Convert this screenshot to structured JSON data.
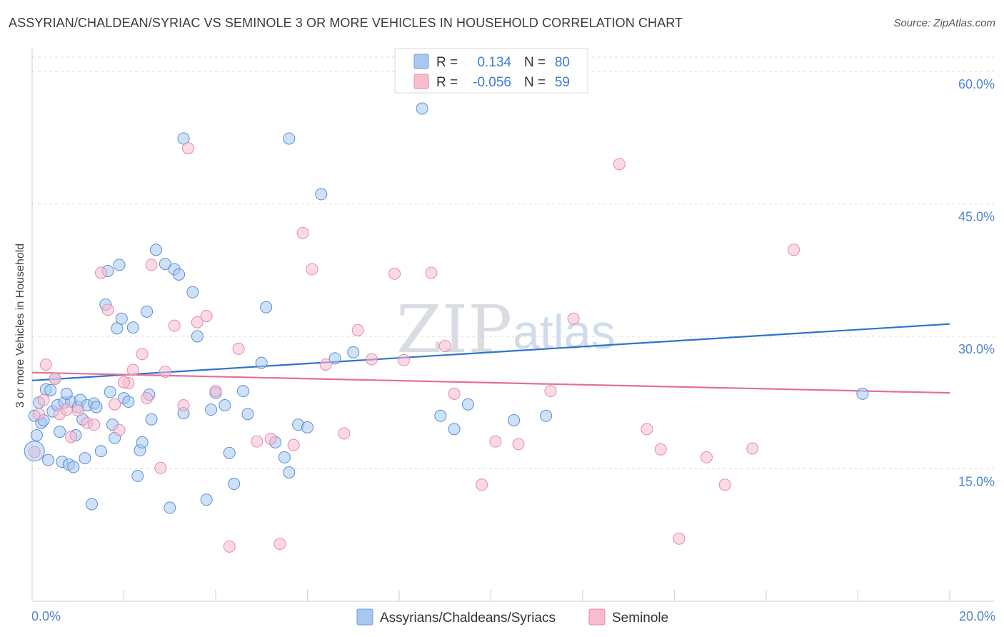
{
  "header": {
    "title": "ASSYRIAN/CHALDEAN/SYRIAC VS SEMINOLE 3 OR MORE VEHICLES IN HOUSEHOLD CORRELATION CHART",
    "source": "Source: ZipAtlas.com"
  },
  "watermark": {
    "zip": "ZIP",
    "atlas": "atlas"
  },
  "legend": {
    "series1": {
      "r_label": "R =",
      "r_value": "0.134",
      "n_label": "N =",
      "n_value": "80",
      "color": "#a8c8f0"
    },
    "series2": {
      "r_label": "R =",
      "r_value": "-0.056",
      "n_label": "N =",
      "n_value": "59",
      "color": "#f7bcd0"
    }
  },
  "bottom_legend": {
    "series1_label": "Assyrians/Chaldeans/Syriacs",
    "series2_label": "Seminole"
  },
  "chart_data": {
    "type": "scatter",
    "title": "ASSYRIAN/CHALDEAN/SYRIAC VS SEMINOLE 3 OR MORE VEHICLES IN HOUSEHOLD CORRELATION CHART",
    "xlabel": "",
    "ylabel": "3 or more Vehicles in Household",
    "xlim": [
      0,
      20
    ],
    "ylim": [
      0,
      60
    ],
    "x_tick_labels": {
      "min": "0.0%",
      "max": "20.0%"
    },
    "y_ticks": [
      {
        "value": 15,
        "label": "15.0%"
      },
      {
        "value": 30,
        "label": "30.0%"
      },
      {
        "value": 45,
        "label": "45.0%"
      },
      {
        "value": 60,
        "label": "60.0%"
      }
    ],
    "grid": true,
    "series": [
      {
        "name": "Assyrians/Chaldeans/Syriacs",
        "color": "#a8c8f0",
        "edge": "#5b8fd6",
        "trend_color": "#2f72d0",
        "trend": {
          "x": [
            0,
            20
          ],
          "y": [
            25.0,
            31.4
          ]
        },
        "points": [
          [
            0.05,
            21.0
          ],
          [
            0.15,
            22.5
          ],
          [
            0.2,
            20.2
          ],
          [
            0.3,
            24.0
          ],
          [
            0.4,
            23.9
          ],
          [
            0.45,
            21.5
          ],
          [
            0.5,
            25.2
          ],
          [
            0.55,
            22.2
          ],
          [
            0.6,
            19.2
          ],
          [
            0.65,
            15.8
          ],
          [
            0.7,
            22.5
          ],
          [
            0.8,
            15.5
          ],
          [
            0.85,
            22.6
          ],
          [
            0.9,
            15.2
          ],
          [
            0.95,
            18.8
          ],
          [
            1.0,
            22.0
          ],
          [
            1.05,
            22.8
          ],
          [
            1.1,
            20.6
          ],
          [
            1.2,
            22.2
          ],
          [
            1.3,
            11.0
          ],
          [
            1.35,
            22.4
          ],
          [
            1.4,
            22.0
          ],
          [
            1.5,
            17.0
          ],
          [
            1.6,
            33.6
          ],
          [
            1.65,
            37.4
          ],
          [
            1.75,
            20.0
          ],
          [
            1.8,
            18.5
          ],
          [
            1.9,
            38.1
          ],
          [
            1.95,
            32.0
          ],
          [
            2.0,
            23.0
          ],
          [
            2.2,
            31.0
          ],
          [
            2.3,
            14.2
          ],
          [
            2.35,
            17.1
          ],
          [
            2.5,
            32.8
          ],
          [
            2.55,
            23.4
          ],
          [
            2.7,
            39.8
          ],
          [
            2.9,
            38.2
          ],
          [
            3.0,
            10.6
          ],
          [
            3.1,
            37.6
          ],
          [
            3.3,
            21.3
          ],
          [
            3.5,
            35.0
          ],
          [
            3.8,
            11.5
          ],
          [
            3.9,
            21.7
          ],
          [
            4.0,
            23.6
          ],
          [
            4.2,
            22.2
          ],
          [
            4.3,
            16.8
          ],
          [
            4.4,
            13.3
          ],
          [
            4.7,
            21.2
          ],
          [
            5.0,
            27.0
          ],
          [
            5.1,
            33.3
          ],
          [
            5.3,
            18.0
          ],
          [
            5.5,
            16.3
          ],
          [
            5.6,
            14.6
          ],
          [
            5.8,
            20.0
          ],
          [
            6.0,
            19.7
          ],
          [
            6.3,
            46.1
          ],
          [
            6.6,
            27.5
          ],
          [
            7.0,
            28.2
          ],
          [
            0.1,
            18.8
          ],
          [
            0.25,
            20.5
          ],
          [
            0.35,
            16.0
          ],
          [
            1.15,
            16.2
          ],
          [
            2.6,
            20.6
          ],
          [
            3.2,
            37.0
          ],
          [
            5.6,
            52.4
          ],
          [
            8.9,
            21.0
          ],
          [
            3.3,
            52.4
          ],
          [
            8.5,
            55.8
          ],
          [
            9.2,
            19.5
          ],
          [
            9.5,
            22.3
          ],
          [
            1.7,
            23.7
          ],
          [
            2.1,
            22.6
          ],
          [
            0.75,
            23.5
          ],
          [
            10.5,
            20.5
          ],
          [
            11.2,
            21.0
          ],
          [
            18.1,
            23.5
          ],
          [
            2.4,
            18.0
          ],
          [
            3.6,
            30.0
          ],
          [
            4.6,
            23.8
          ],
          [
            1.85,
            30.9
          ]
        ]
      },
      {
        "name": "Seminole",
        "color": "#f7bcd0",
        "edge": "#e68aab",
        "trend_color": "#e46f98",
        "trend": {
          "x": [
            0,
            20
          ],
          "y": [
            25.9,
            23.6
          ]
        },
        "points": [
          [
            0.05,
            16.9
          ],
          [
            0.15,
            21.2
          ],
          [
            0.25,
            22.8
          ],
          [
            0.3,
            26.8
          ],
          [
            0.5,
            25.2
          ],
          [
            0.6,
            21.2
          ],
          [
            0.75,
            21.7
          ],
          [
            0.85,
            18.6
          ],
          [
            1.0,
            21.6
          ],
          [
            1.2,
            20.2
          ],
          [
            1.5,
            37.2
          ],
          [
            1.65,
            33.0
          ],
          [
            1.8,
            22.3
          ],
          [
            1.9,
            19.4
          ],
          [
            2.1,
            24.7
          ],
          [
            2.2,
            26.2
          ],
          [
            2.4,
            28.0
          ],
          [
            2.5,
            23.0
          ],
          [
            2.6,
            38.1
          ],
          [
            2.8,
            15.1
          ],
          [
            2.9,
            26.0
          ],
          [
            3.1,
            31.2
          ],
          [
            3.3,
            22.2
          ],
          [
            3.4,
            51.3
          ],
          [
            3.6,
            31.6
          ],
          [
            3.8,
            32.3
          ],
          [
            4.0,
            23.8
          ],
          [
            4.3,
            6.2
          ],
          [
            4.5,
            28.6
          ],
          [
            4.9,
            18.1
          ],
          [
            5.2,
            18.4
          ],
          [
            5.4,
            6.5
          ],
          [
            5.7,
            17.7
          ],
          [
            5.9,
            41.7
          ],
          [
            6.1,
            37.6
          ],
          [
            6.4,
            26.8
          ],
          [
            6.8,
            19.0
          ],
          [
            7.1,
            30.7
          ],
          [
            7.4,
            27.4
          ],
          [
            7.9,
            37.1
          ],
          [
            8.1,
            27.3
          ],
          [
            8.7,
            37.2
          ],
          [
            9.0,
            28.9
          ],
          [
            9.2,
            23.5
          ],
          [
            9.8,
            13.2
          ],
          [
            10.1,
            18.1
          ],
          [
            10.6,
            17.8
          ],
          [
            11.3,
            23.8
          ],
          [
            11.8,
            32.0
          ],
          [
            12.8,
            49.5
          ],
          [
            13.4,
            19.5
          ],
          [
            13.7,
            17.2
          ],
          [
            14.1,
            7.1
          ],
          [
            14.7,
            16.3
          ],
          [
            15.1,
            13.2
          ],
          [
            15.7,
            17.3
          ],
          [
            16.6,
            39.8
          ],
          [
            2.0,
            24.8
          ],
          [
            1.35,
            20.0
          ]
        ]
      }
    ]
  }
}
